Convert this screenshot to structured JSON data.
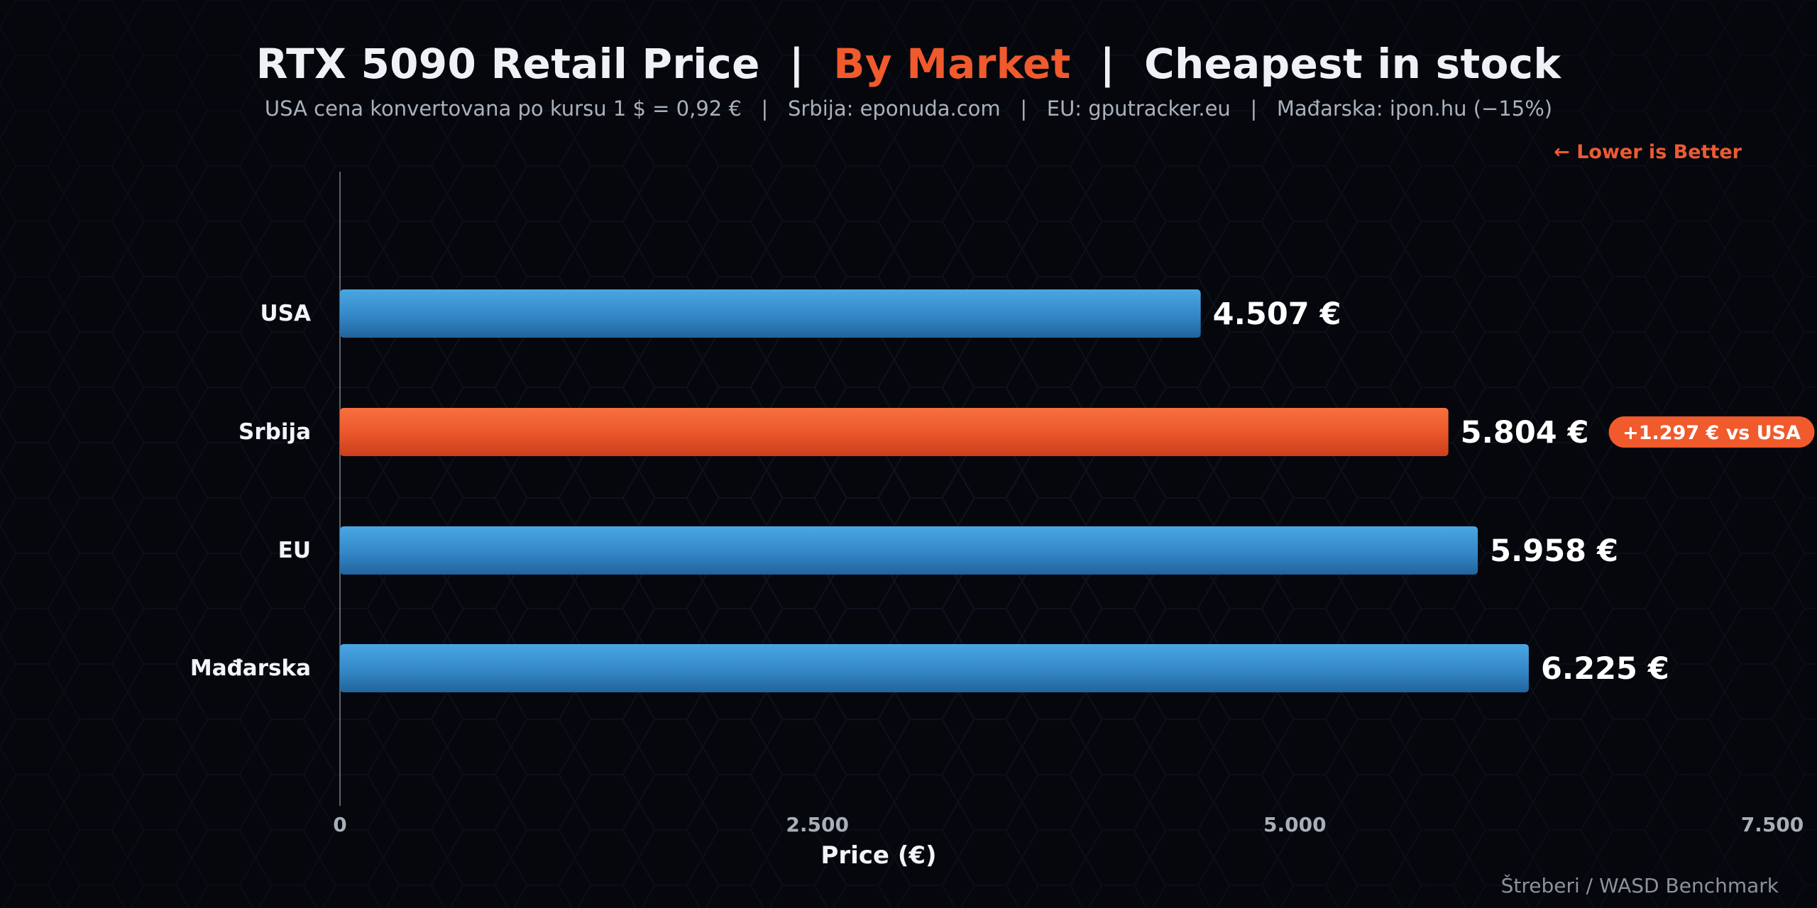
{
  "header": {
    "title_part1": "RTX 5090 Retail Price",
    "title_sep1": "  |  ",
    "title_part2": "By Market",
    "title_sep2": "  |  ",
    "title_part3": "Cheapest in stock",
    "subtitle": "USA cena konvertovana po kursu 1 $ = 0,92 €   |   Srbija: eponuda.com   |   EU: gputracker.eu   |   Mađarska: ipon.hu (−15%)",
    "lower_is_better": "←  Lower is Better"
  },
  "footer": {
    "credit": "Štreberi / WASD Benchmark"
  },
  "colors": {
    "primary_bar": "#3a8fcf",
    "highlight_bar": "#f05a2c",
    "accent": "#f05a2c"
  },
  "chart_data": {
    "type": "bar",
    "orientation": "horizontal",
    "categories": [
      "USA",
      "Srbija",
      "EU",
      "Mađarska"
    ],
    "values": [
      4507,
      5804,
      5958,
      6225
    ],
    "value_labels": [
      "4.507 €",
      "5.804 €",
      "5.958 €",
      "6.225 €"
    ],
    "highlight_category": "Srbija",
    "annotation": {
      "category": "Srbija",
      "text": "+1.297 €  vs USA"
    },
    "xlabel": "Price (€)",
    "ylabel": "",
    "xlim": [
      0,
      7500
    ],
    "xticks": [
      0,
      2500,
      5000,
      7500
    ],
    "xtick_labels": [
      "0",
      "2.500",
      "5.000",
      "7.500"
    ],
    "grid": false
  }
}
